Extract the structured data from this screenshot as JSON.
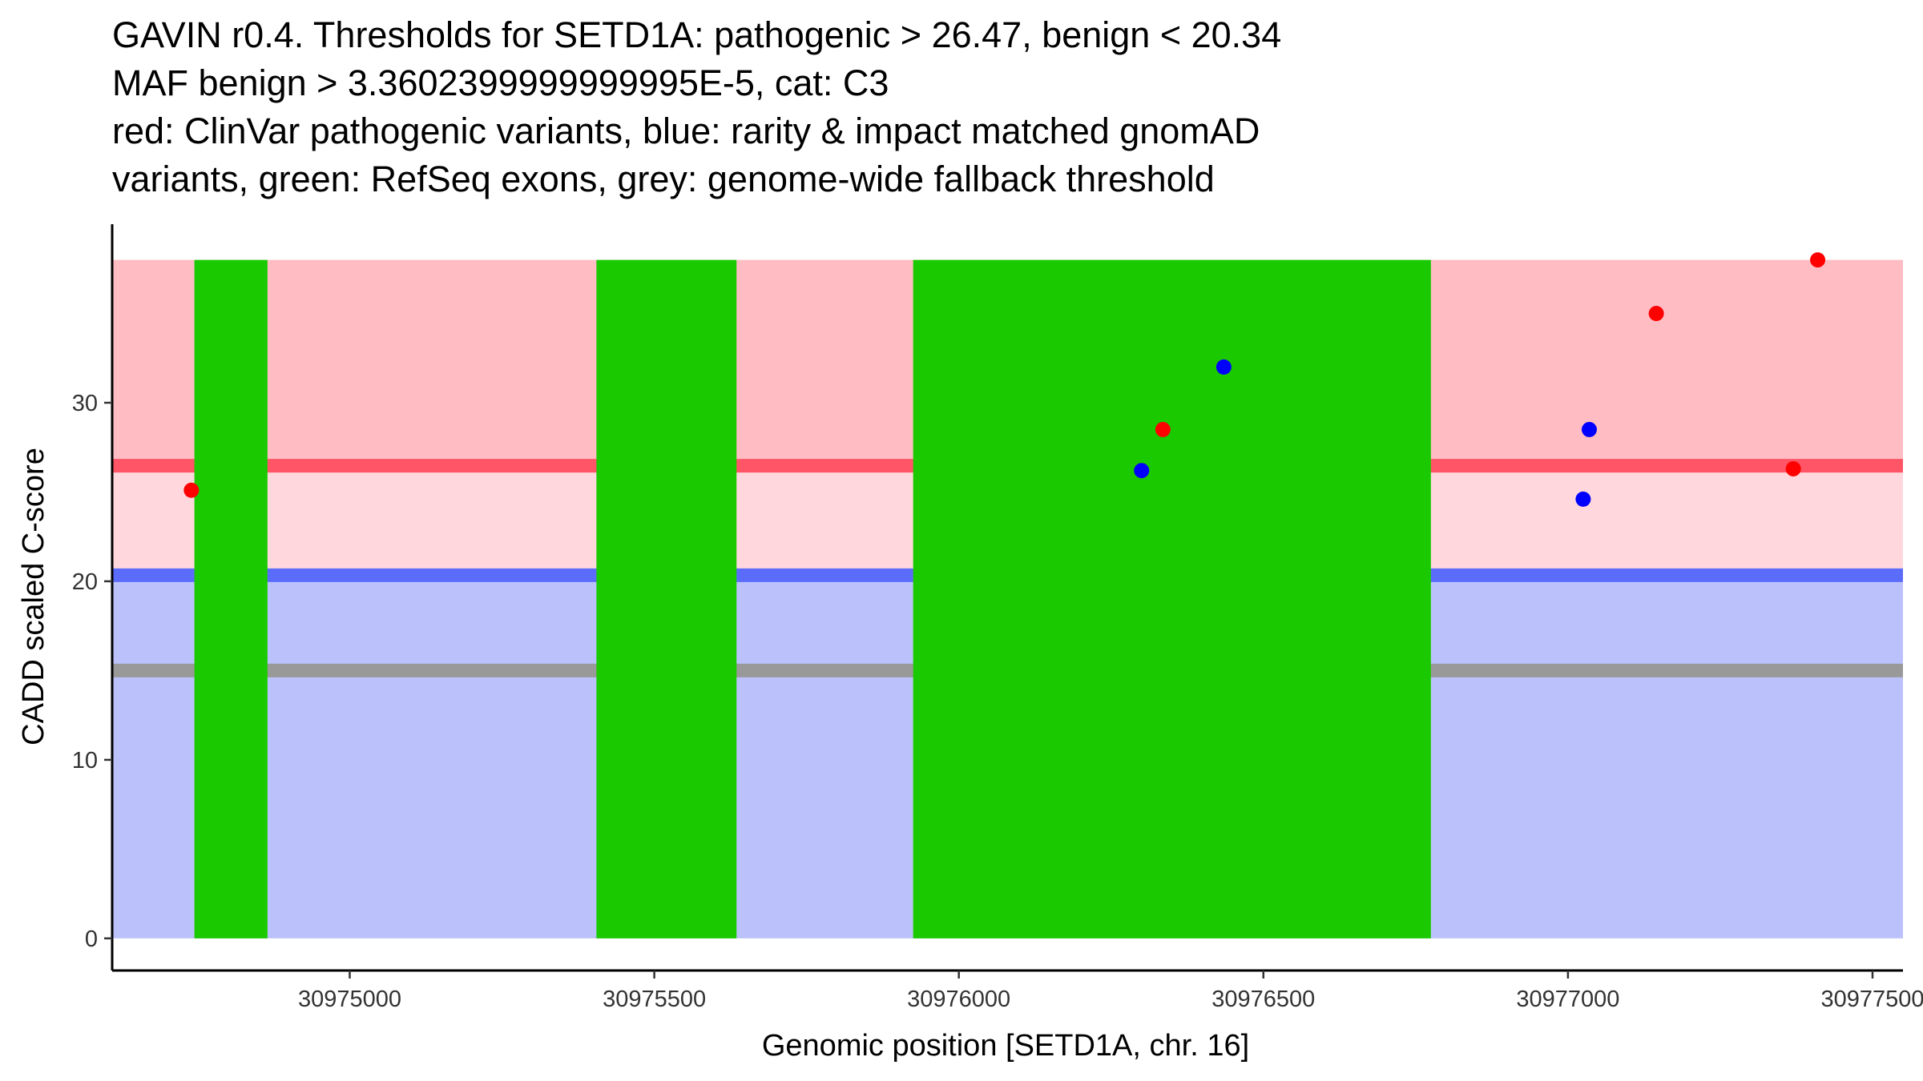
{
  "title": {
    "lines": [
      "GAVIN r0.4. Thresholds for SETD1A: pathogenic > 26.47, benign < 20.34",
      "MAF benign > 3.3602399999999995E-5, cat: C3",
      "red: ClinVar pathogenic variants, blue: rarity & impact matched gnomAD",
      "variants, green: RefSeq exons, grey: genome-wide fallback threshold"
    ]
  },
  "chart_data": {
    "type": "scatter",
    "xlabel": "Genomic position [SETD1A, chr. 16]",
    "ylabel": "CADD scaled C-score",
    "xlim": [
      30974610,
      30977550
    ],
    "ylim": [
      -1.8,
      40
    ],
    "x_ticks": [
      30975000,
      30975500,
      30976000,
      30976500,
      30977000,
      30977500
    ],
    "x_tick_labels": [
      "30975000",
      "30975500",
      "30976000",
      "30976500",
      "30977000",
      "30977500"
    ],
    "y_ticks": [
      0,
      10,
      20,
      30
    ],
    "y_tick_labels": [
      "0",
      "10",
      "20",
      "30"
    ],
    "grid": false,
    "background_bands": [
      {
        "name": "benign-region",
        "y0": 0,
        "y1": 20.34,
        "color": "#bbc2fb"
      },
      {
        "name": "uncertain-region",
        "y0": 20.34,
        "y1": 26.47,
        "color": "#ffd7dc"
      },
      {
        "name": "pathogenic-region",
        "y0": 26.47,
        "y1": 38,
        "color": "#ffbcc3"
      }
    ],
    "threshold_lines": [
      {
        "name": "pathogenic-threshold",
        "y": 26.47,
        "color": "#ff5566"
      },
      {
        "name": "benign-threshold",
        "y": 20.34,
        "color": "#5b6cfb"
      },
      {
        "name": "fallback-threshold",
        "y": 15,
        "color": "#999999"
      }
    ],
    "exons": [
      {
        "start": 30974745,
        "end": 30974865
      },
      {
        "start": 30975405,
        "end": 30975635
      },
      {
        "start": 30975925,
        "end": 30976775
      }
    ],
    "exon_color": "#1bc900",
    "y_top": 38,
    "series": [
      {
        "name": "ClinVar pathogenic variants",
        "color": "#ff0000",
        "points": [
          {
            "x": 30974740,
            "y": 25.1
          },
          {
            "x": 30976335,
            "y": 28.5
          },
          {
            "x": 30977145,
            "y": 35.0
          },
          {
            "x": 30977370,
            "y": 26.3
          },
          {
            "x": 30977410,
            "y": 38.0
          }
        ]
      },
      {
        "name": "gnomAD matched variants",
        "color": "#0000ff",
        "points": [
          {
            "x": 30976300,
            "y": 26.2
          },
          {
            "x": 30976435,
            "y": 32.0
          },
          {
            "x": 30977025,
            "y": 24.6
          },
          {
            "x": 30977035,
            "y": 28.5
          }
        ]
      }
    ]
  }
}
